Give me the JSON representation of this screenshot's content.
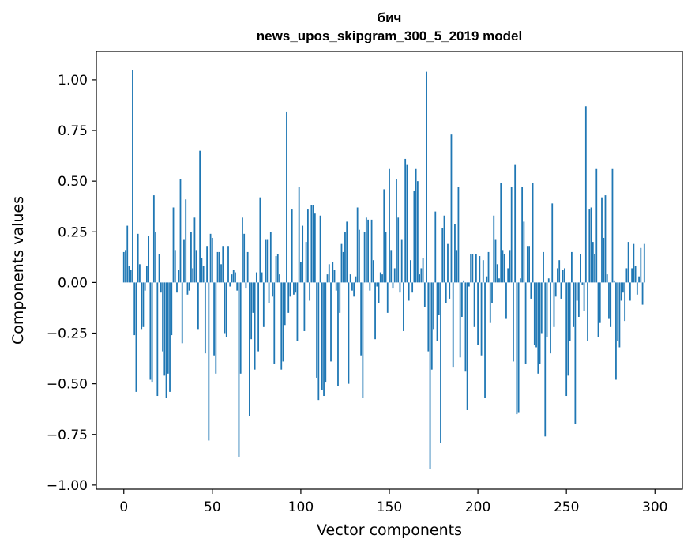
{
  "chart_data": {
    "type": "bar",
    "title": [
      "бич",
      "news_upos_skipgram_300_5_2019 model"
    ],
    "xlabel": "Vector components",
    "ylabel": "Components values",
    "xlim": [
      -15.5,
      315.5
    ],
    "ylim": [
      -1.02,
      1.14
    ],
    "x_ticks": [
      0,
      50,
      100,
      150,
      200,
      250,
      300
    ],
    "y_ticks": [
      1.0,
      0.75,
      0.5,
      0.25,
      0.0,
      -0.25,
      -0.5,
      -0.75,
      -1.0
    ],
    "x_tick_labels": [
      "0",
      "50",
      "100",
      "150",
      "200",
      "250",
      "300"
    ],
    "y_tick_labels": [
      "1.00",
      "0.75",
      "0.50",
      "0.25",
      "0.00",
      "−0.25",
      "−0.50",
      "−0.75",
      "−1.00"
    ],
    "bar_color": "#1f77b4",
    "grid": false,
    "legend": "none",
    "values": [
      0.15,
      0.16,
      0.28,
      0.08,
      0.06,
      1.05,
      -0.26,
      -0.54,
      0.24,
      0.09,
      -0.23,
      -0.22,
      -0.04,
      0.08,
      0.23,
      -0.48,
      -0.49,
      0.43,
      0.25,
      -0.56,
      0.14,
      -0.05,
      -0.34,
      -0.46,
      -0.57,
      -0.45,
      -0.54,
      -0.26,
      0.37,
      0.16,
      -0.05,
      0.06,
      0.51,
      -0.3,
      0.21,
      0.41,
      -0.06,
      -0.04,
      0.25,
      0.07,
      0.32,
      0.16,
      -0.23,
      0.65,
      0.12,
      0.08,
      -0.35,
      0.18,
      -0.78,
      0.24,
      0.22,
      -0.36,
      -0.45,
      0.15,
      0.15,
      0.09,
      0.18,
      -0.25,
      -0.27,
      0.18,
      -0.02,
      0.04,
      0.06,
      0.05,
      -0.04,
      -0.86,
      -0.45,
      0.32,
      0.24,
      -0.03,
      0.15,
      -0.66,
      -0.28,
      -0.15,
      -0.43,
      0.05,
      -0.34,
      0.42,
      0.05,
      -0.22,
      0.21,
      0.21,
      -0.1,
      0.25,
      -0.07,
      -0.4,
      0.13,
      0.14,
      0.04,
      -0.43,
      -0.39,
      -0.21,
      0.84,
      -0.15,
      -0.07,
      0.36,
      -0.06,
      -0.05,
      -0.29,
      0.47,
      0.1,
      0.28,
      -0.24,
      0.2,
      0.36,
      -0.09,
      0.38,
      0.38,
      0.34,
      -0.47,
      -0.58,
      0.33,
      -0.53,
      -0.56,
      -0.49,
      0.04,
      0.09,
      -0.39,
      0.1,
      0.06,
      -0.04,
      -0.51,
      -0.15,
      0.19,
      0.15,
      0.25,
      0.3,
      -0.5,
      0.04,
      -0.04,
      -0.07,
      0.03,
      0.37,
      0.26,
      -0.36,
      -0.57,
      0.25,
      0.32,
      0.31,
      -0.04,
      0.31,
      0.11,
      -0.28,
      -0.02,
      -0.1,
      0.05,
      0.04,
      0.46,
      0.25,
      -0.15,
      0.56,
      0.16,
      -0.03,
      0.07,
      0.51,
      0.32,
      -0.05,
      0.21,
      -0.24,
      0.61,
      0.58,
      -0.09,
      0.11,
      -0.05,
      0.45,
      0.56,
      0.5,
      0.04,
      0.07,
      0.12,
      -0.12,
      1.04,
      -0.34,
      -0.92,
      -0.43,
      -0.23,
      0.35,
      -0.29,
      -0.16,
      -0.79,
      0.27,
      0.33,
      -0.1,
      0.19,
      -0.08,
      0.73,
      -0.42,
      0.29,
      0.16,
      0.47,
      -0.37,
      -0.17,
      0.01,
      -0.44,
      -0.63,
      -0.02,
      0.14,
      0.14,
      -0.22,
      0.14,
      -0.31,
      0.13,
      -0.36,
      0.11,
      -0.57,
      0.03,
      0.15,
      -0.2,
      -0.1,
      0.33,
      0.21,
      0.09,
      0.02,
      0.49,
      0.16,
      0.14,
      -0.18,
      0.07,
      0.16,
      0.47,
      -0.39,
      0.58,
      -0.65,
      -0.64,
      0.02,
      0.47,
      0.3,
      -0.4,
      0.18,
      0.18,
      -0.08,
      0.49,
      -0.31,
      -0.32,
      -0.45,
      -0.4,
      -0.25,
      0.15,
      -0.76,
      -0.27,
      0.02,
      -0.35,
      0.39,
      -0.22,
      -0.07,
      0.07,
      0.11,
      -0.08,
      0.06,
      0.07,
      -0.56,
      -0.46,
      -0.29,
      0.15,
      -0.22,
      -0.7,
      -0.09,
      -0.17,
      0.14,
      -0.01,
      -0.14,
      0.87,
      -0.29,
      0.36,
      0.37,
      0.2,
      0.14,
      0.56,
      -0.27,
      -0.2,
      0.42,
      0.22,
      0.43,
      0.04,
      -0.18,
      -0.22,
      0.56,
      0.01,
      -0.48,
      -0.29,
      -0.32,
      -0.09,
      -0.05,
      -0.19,
      0.07,
      0.2,
      -0.09,
      0.07,
      0.19,
      0.08,
      -0.06,
      0.03,
      0.17,
      -0.11,
      0.19
    ]
  }
}
